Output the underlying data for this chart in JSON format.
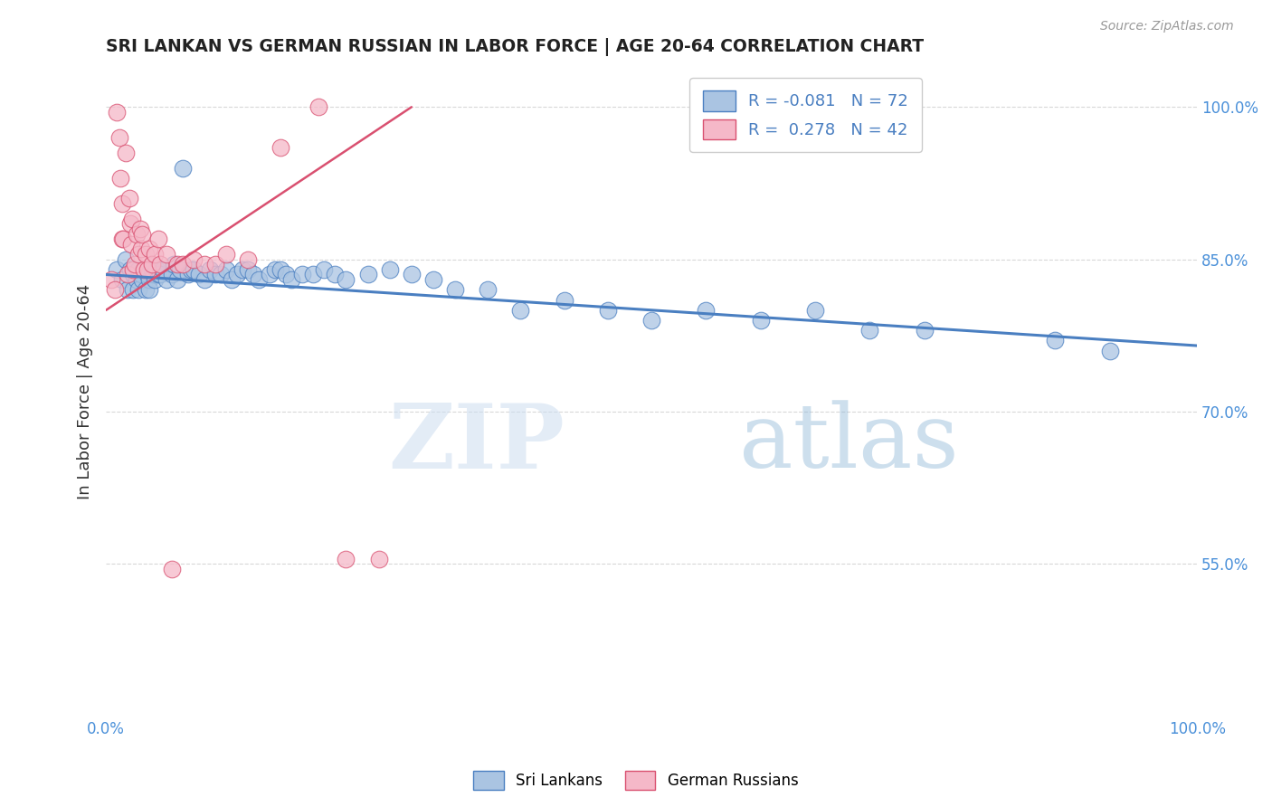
{
  "title": "SRI LANKAN VS GERMAN RUSSIAN IN LABOR FORCE | AGE 20-64 CORRELATION CHART",
  "source": "Source: ZipAtlas.com",
  "ylabel": "In Labor Force | Age 20-64",
  "xlim": [
    0.0,
    1.0
  ],
  "ylim": [
    0.4,
    1.04
  ],
  "xticks": [
    0.0,
    0.2,
    0.4,
    0.6,
    0.8,
    1.0
  ],
  "xticklabels": [
    "0.0%",
    "",
    "",
    "",
    "",
    "100.0%"
  ],
  "yticks_right": [
    0.55,
    0.7,
    0.85,
    1.0
  ],
  "ytick_right_labels": [
    "55.0%",
    "70.0%",
    "85.0%",
    "100.0%"
  ],
  "blue_color": "#aac4e2",
  "pink_color": "#f5b8c8",
  "blue_line_color": "#4a7fc1",
  "pink_line_color": "#d95070",
  "blue_R": -0.081,
  "blue_N": 72,
  "pink_R": 0.278,
  "pink_N": 42,
  "watermark_zip": "ZIP",
  "watermark_atlas": "atlas",
  "background_color": "#ffffff",
  "grid_color": "#d8d8d8",
  "sri_lankans_x": [
    0.01,
    0.015,
    0.018,
    0.02,
    0.022,
    0.025,
    0.025,
    0.028,
    0.03,
    0.03,
    0.032,
    0.033,
    0.035,
    0.036,
    0.038,
    0.04,
    0.04,
    0.042,
    0.044,
    0.045,
    0.046,
    0.048,
    0.05,
    0.052,
    0.055,
    0.06,
    0.062,
    0.065,
    0.068,
    0.07,
    0.075,
    0.078,
    0.08,
    0.085,
    0.09,
    0.095,
    0.1,
    0.105,
    0.11,
    0.115,
    0.12,
    0.125,
    0.13,
    0.135,
    0.14,
    0.15,
    0.155,
    0.16,
    0.165,
    0.17,
    0.18,
    0.19,
    0.2,
    0.21,
    0.22,
    0.24,
    0.26,
    0.28,
    0.3,
    0.32,
    0.35,
    0.38,
    0.42,
    0.46,
    0.5,
    0.55,
    0.6,
    0.65,
    0.7,
    0.75,
    0.87,
    0.92
  ],
  "sri_lankans_y": [
    0.84,
    0.83,
    0.85,
    0.82,
    0.84,
    0.835,
    0.82,
    0.83,
    0.84,
    0.82,
    0.835,
    0.83,
    0.84,
    0.82,
    0.835,
    0.83,
    0.82,
    0.84,
    0.835,
    0.83,
    0.84,
    0.835,
    0.835,
    0.84,
    0.83,
    0.835,
    0.845,
    0.83,
    0.84,
    0.94,
    0.835,
    0.84,
    0.84,
    0.835,
    0.83,
    0.84,
    0.835,
    0.835,
    0.84,
    0.83,
    0.835,
    0.84,
    0.84,
    0.835,
    0.83,
    0.835,
    0.84,
    0.84,
    0.835,
    0.83,
    0.835,
    0.835,
    0.84,
    0.835,
    0.83,
    0.835,
    0.84,
    0.835,
    0.83,
    0.82,
    0.82,
    0.8,
    0.81,
    0.8,
    0.79,
    0.8,
    0.79,
    0.8,
    0.78,
    0.78,
    0.77,
    0.76
  ],
  "german_russians_x": [
    0.005,
    0.008,
    0.01,
    0.012,
    0.013,
    0.015,
    0.015,
    0.016,
    0.018,
    0.02,
    0.021,
    0.022,
    0.023,
    0.024,
    0.025,
    0.026,
    0.028,
    0.03,
    0.031,
    0.032,
    0.033,
    0.035,
    0.036,
    0.038,
    0.04,
    0.042,
    0.045,
    0.048,
    0.05,
    0.055,
    0.06,
    0.065,
    0.07,
    0.08,
    0.09,
    0.1,
    0.11,
    0.13,
    0.16,
    0.195,
    0.22,
    0.25
  ],
  "german_russians_y": [
    0.83,
    0.82,
    0.995,
    0.97,
    0.93,
    0.905,
    0.87,
    0.87,
    0.955,
    0.835,
    0.91,
    0.885,
    0.865,
    0.89,
    0.84,
    0.845,
    0.875,
    0.855,
    0.88,
    0.86,
    0.875,
    0.84,
    0.855,
    0.84,
    0.86,
    0.845,
    0.855,
    0.87,
    0.845,
    0.855,
    0.545,
    0.845,
    0.845,
    0.85,
    0.845,
    0.845,
    0.855,
    0.85,
    0.96,
    1.0,
    0.555,
    0.555
  ]
}
